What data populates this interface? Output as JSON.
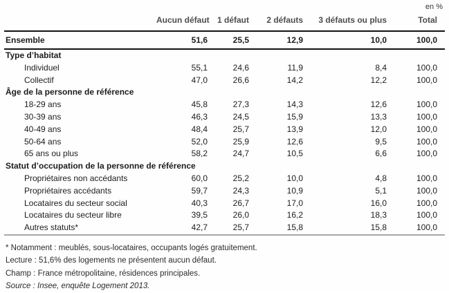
{
  "page": {
    "unit_label": "en %"
  },
  "table": {
    "columns": [
      "Aucun défaut",
      "1 défaut",
      "2 défauts",
      "3 défauts ou plus",
      "Total"
    ],
    "ensemble": {
      "label": "Ensemble",
      "values": [
        "51,6",
        "25,5",
        "12,9",
        "10,0",
        "100,0"
      ]
    },
    "sections": [
      {
        "title": "Type d’habitat",
        "rows": [
          {
            "label": "Individuel",
            "values": [
              "55,1",
              "24,6",
              "11,9",
              "8,4",
              "100,0"
            ]
          },
          {
            "label": "Collectif",
            "values": [
              "47,0",
              "26,6",
              "14,2",
              "12,2",
              "100,0"
            ]
          }
        ]
      },
      {
        "title": "Âge de la personne de référence",
        "rows": [
          {
            "label": "18-29 ans",
            "values": [
              "45,8",
              "27,3",
              "14,3",
              "12,6",
              "100,0"
            ]
          },
          {
            "label": "30-39 ans",
            "values": [
              "46,3",
              "24,5",
              "15,9",
              "13,3",
              "100,0"
            ]
          },
          {
            "label": "40-49 ans",
            "values": [
              "48,4",
              "25,7",
              "13,9",
              "12,0",
              "100,0"
            ]
          },
          {
            "label": "50-64 ans",
            "values": [
              "52,0",
              "25,9",
              "12,6",
              "9,5",
              "100,0"
            ]
          },
          {
            "label": "65 ans ou plus",
            "values": [
              "58,2",
              "24,7",
              "10,5",
              "6,6",
              "100,0"
            ]
          }
        ]
      },
      {
        "title": "Statut d’occupation de la personne de référence",
        "rows": [
          {
            "label": "Propriétaires non accédants",
            "values": [
              "60,0",
              "25,2",
              "10,0",
              "4,8",
              "100,0"
            ]
          },
          {
            "label": "Propriétaires accédants",
            "values": [
              "59,7",
              "24,3",
              "10,9",
              "5,1",
              "100,0"
            ]
          },
          {
            "label": "Locataires du secteur social",
            "values": [
              "40,3",
              "26,7",
              "17,0",
              "16,0",
              "100,0"
            ]
          },
          {
            "label": "Locataires du secteur libre",
            "values": [
              "39,5",
              "26,0",
              "16,2",
              "18,3",
              "100,0"
            ]
          },
          {
            "label": "Autres statuts*",
            "values": [
              "42,7",
              "25,7",
              "15,8",
              "15,8",
              "100,0"
            ]
          }
        ]
      }
    ]
  },
  "footnotes": [
    {
      "text": "* Notamment : meublés, sous-locataires, occupants logés gratuitement.",
      "italic": false
    },
    {
      "text": "Lecture : 51,6% des logements ne présentent aucun défaut.",
      "italic": false
    },
    {
      "text": "Champ : France métropolitaine, résidences principales.",
      "italic": false
    },
    {
      "text": "Source : Insee, enquête Logement 2013.",
      "italic": true
    }
  ],
  "colors": {
    "header_text": "#4d4d4d",
    "body_text": "#1c1c1c",
    "rule_dark": "#111111",
    "rule_light": "#a8a8a8"
  }
}
